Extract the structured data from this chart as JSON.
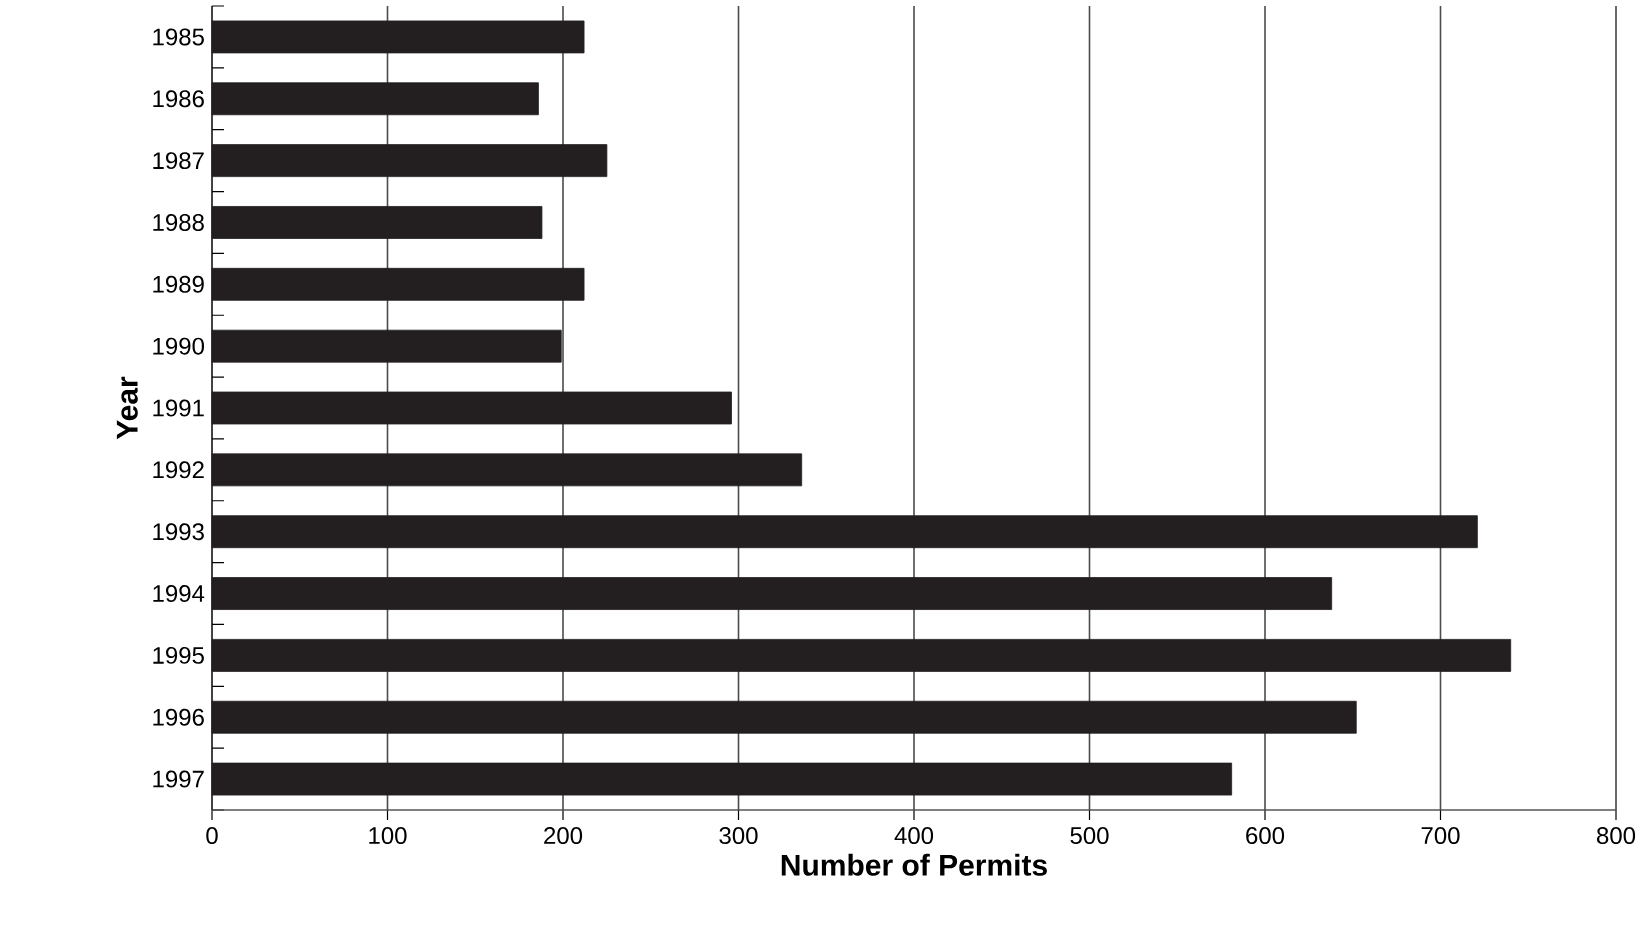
{
  "chart_data": {
    "type": "bar",
    "orientation": "horizontal",
    "xlabel": "Number of Permits",
    "ylabel": "Year",
    "categories": [
      "1985",
      "1986",
      "1987",
      "1988",
      "1989",
      "1990",
      "1991",
      "1992",
      "1993",
      "1994",
      "1995",
      "1996",
      "1997"
    ],
    "values": [
      212,
      186,
      225,
      188,
      212,
      199,
      296,
      336,
      721,
      638,
      740,
      652,
      581
    ],
    "color": "#231f20",
    "xlim": [
      0,
      800
    ],
    "xticks": [
      0,
      100,
      200,
      300,
      400,
      500,
      600,
      700,
      800
    ],
    "grid": "x"
  }
}
